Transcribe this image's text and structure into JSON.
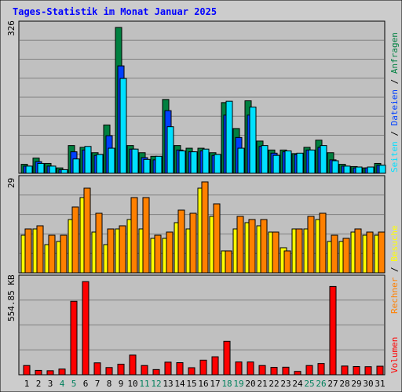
{
  "title": "Tages-Statistik im Monat Januar 2025",
  "colors": {
    "frame": "#cccccc",
    "title": "#0000ff",
    "panel": "#c0c0c0",
    "grid": "#808080",
    "weekday_label": "#000000",
    "weekend_label": "#00805c",
    "anfragen": "#008040",
    "dateien": "#0040ff",
    "seiten": "#00e0ff",
    "besuche": "#ffff00",
    "rechner": "#ff8000",
    "volumen": "#ff0000"
  },
  "legend_right": {
    "top": [
      "Anfragen",
      "Dateien",
      "Seiten"
    ],
    "mid": [
      "Besuche",
      "Rechner"
    ],
    "bottom": [
      "Volumen"
    ],
    "separator": " / "
  },
  "chart_data": [
    {
      "type": "bar",
      "panel": "requests",
      "y_max_label": "326",
      "ylim": [
        0,
        326
      ],
      "categories": [
        "1",
        "2",
        "3",
        "4",
        "5",
        "6",
        "7",
        "8",
        "9",
        "10",
        "11",
        "12",
        "13",
        "14",
        "15",
        "16",
        "17",
        "18",
        "19",
        "20",
        "21",
        "22",
        "23",
        "24",
        "25",
        "26",
        "27",
        "28",
        "29",
        "30",
        "31"
      ],
      "weekend_days": [
        "4",
        "5",
        "11",
        "12",
        "18",
        "19",
        "25",
        "26"
      ],
      "series": [
        {
          "name": "Anfragen",
          "values": [
            20,
            34,
            22,
            12,
            62,
            58,
            46,
            108,
            326,
            62,
            46,
            38,
            165,
            62,
            56,
            56,
            46,
            158,
            100,
            162,
            72,
            52,
            52,
            44,
            58,
            74,
            46,
            20,
            15,
            12,
            22
          ]
        },
        {
          "name": "Dateien",
          "values": [
            16,
            26,
            16,
            8,
            48,
            52,
            40,
            84,
            240,
            54,
            35,
            30,
            140,
            52,
            48,
            50,
            40,
            130,
            80,
            130,
            60,
            45,
            48,
            42,
            52,
            58,
            30,
            16,
            12,
            12,
            18
          ]
        },
        {
          "name": "Seiten",
          "values": [
            16,
            22,
            16,
            8,
            32,
            60,
            42,
            56,
            212,
            54,
            31,
            38,
            104,
            50,
            48,
            54,
            42,
            161,
            56,
            148,
            62,
            40,
            50,
            45,
            52,
            62,
            28,
            16,
            14,
            14,
            18
          ]
        }
      ]
    },
    {
      "type": "bar",
      "panel": "visits",
      "y_max_label": "29",
      "ylim": [
        0,
        29
      ],
      "categories": [
        "1",
        "2",
        "3",
        "4",
        "5",
        "6",
        "7",
        "8",
        "9",
        "10",
        "11",
        "12",
        "13",
        "14",
        "15",
        "16",
        "17",
        "18",
        "19",
        "20",
        "21",
        "22",
        "23",
        "24",
        "25",
        "26",
        "27",
        "28",
        "29",
        "30",
        "31"
      ],
      "series": [
        {
          "name": "Besuche",
          "values": [
            12,
            14,
            9,
            10,
            17,
            24,
            13,
            9,
            14,
            17,
            14,
            11,
            11,
            16,
            14,
            27,
            18,
            7,
            14,
            16,
            15,
            13,
            8,
            14,
            14,
            17,
            10,
            10,
            13,
            12,
            12
          ]
        },
        {
          "name": "Rechner",
          "values": [
            14,
            15,
            12,
            12,
            21,
            27,
            19,
            14,
            15,
            24,
            24,
            12,
            13,
            20,
            19,
            29,
            22,
            7,
            18,
            17,
            17,
            13,
            7,
            14,
            18,
            19,
            12,
            11,
            14,
            13,
            13
          ]
        }
      ]
    },
    {
      "type": "bar",
      "panel": "volume",
      "y_max_label": "554.85 KB",
      "unit": "KB",
      "ylim": [
        0,
        554.85
      ],
      "categories": [
        "1",
        "2",
        "3",
        "4",
        "5",
        "6",
        "7",
        "8",
        "9",
        "10",
        "11",
        "12",
        "13",
        "14",
        "15",
        "16",
        "17",
        "18",
        "19",
        "20",
        "21",
        "22",
        "23",
        "24",
        "25",
        "26",
        "27",
        "28",
        "29",
        "30",
        "31"
      ],
      "series": [
        {
          "name": "Volumen",
          "values": [
            55,
            26,
            24,
            34,
            437,
            554,
            71,
            43,
            63,
            117,
            55,
            31,
            75,
            72,
            42,
            87,
            107,
            199,
            76,
            76,
            55,
            44,
            45,
            20,
            55,
            67,
            525,
            52,
            49,
            48,
            51
          ]
        }
      ]
    }
  ]
}
